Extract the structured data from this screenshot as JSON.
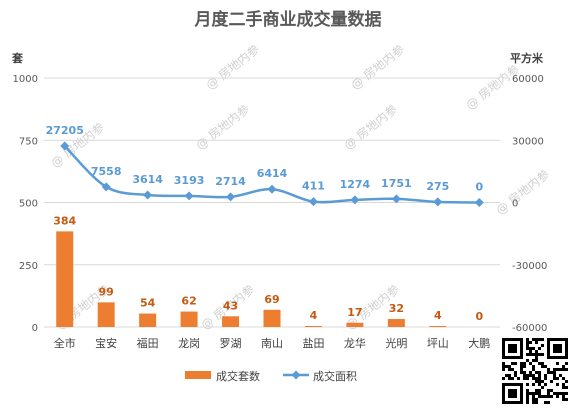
{
  "chart_data": {
    "type": "bar",
    "title": "月度二手商业成交量数据",
    "categories": [
      "全市",
      "宝安",
      "福田",
      "龙岗",
      "罗湖",
      "南山",
      "盐田",
      "龙华",
      "光明",
      "坪山",
      "大鹏"
    ],
    "series": [
      {
        "name": "成交套数",
        "type": "bar",
        "axis": "left",
        "values": [
          384,
          99,
          54,
          62,
          43,
          69,
          4,
          17,
          32,
          4,
          0
        ],
        "color": "#ed7d31",
        "label_color": "#c55a11"
      },
      {
        "name": "成交面积",
        "type": "line",
        "axis": "right",
        "values": [
          27205,
          7558,
          3614,
          3193,
          2714,
          6414,
          411,
          1274,
          1751,
          275,
          0
        ],
        "color": "#5b9bd5"
      }
    ],
    "y_left": {
      "label": "套",
      "min": 0,
      "max": 1000,
      "ticks": [
        0,
        250,
        500,
        750,
        1000
      ],
      "tick_labels": [
        "0",
        "250",
        "500",
        "750",
        "1000"
      ]
    },
    "y_right": {
      "label": "平方米",
      "min": -60000,
      "max": 60000,
      "ticks": [
        -60000,
        -30000,
        0,
        30000,
        60000
      ],
      "tick_labels": [
        "-60000",
        "-30000",
        "0",
        "30000",
        "60000"
      ]
    },
    "grid": true,
    "legend": "bottom"
  },
  "watermark": {
    "text": "@ 房地内参"
  }
}
